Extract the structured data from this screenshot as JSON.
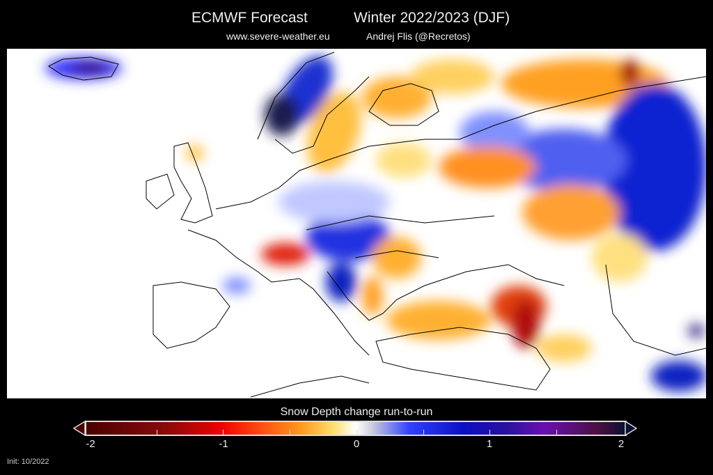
{
  "header": {
    "title_left": "ECMWF Forecast",
    "title_right": "Winter 2022/2023 (DJF)",
    "website": "www.severe-weather.eu",
    "author": "Andrej Flis (@Recretos)"
  },
  "colorbar": {
    "title": "Snow Depth change run-to-run",
    "ticks": [
      "-2",
      "-1",
      "0",
      "1",
      "2"
    ],
    "range": [
      -2,
      2
    ],
    "colors": {
      "min": "#4a0000",
      "red": "#e00000",
      "orange": "#ff9a20",
      "zero": "#ffffff",
      "blue": "#0a10c0",
      "purple": "#6a10b0",
      "max": "#0a1030"
    }
  },
  "footer": {
    "init": "Init: 10/2022"
  }
}
